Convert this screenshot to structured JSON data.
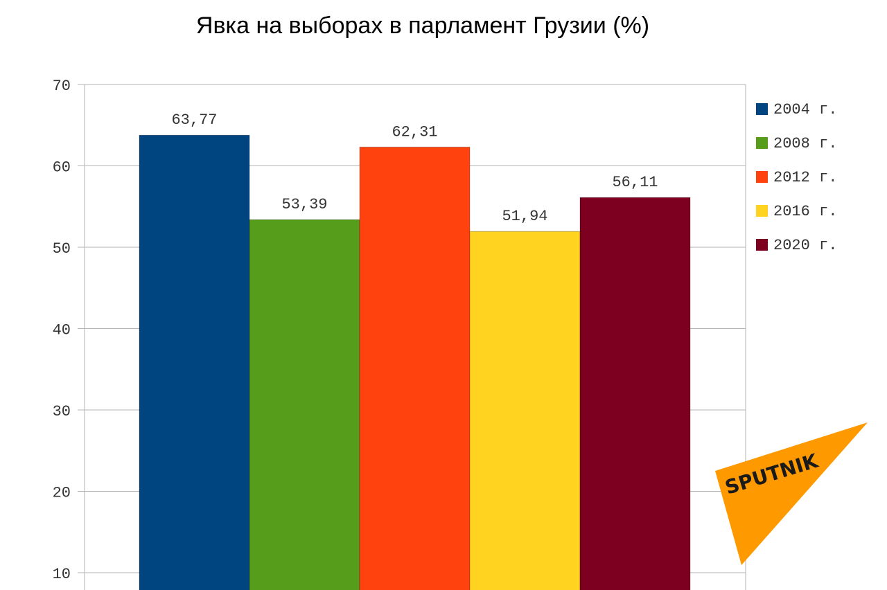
{
  "chart_data": {
    "type": "bar",
    "title": "Явка на выборах в парламент Грузии (%)",
    "xlabel": "",
    "ylabel": "",
    "ylim": [
      0,
      70
    ],
    "yticks": [
      "10",
      "20",
      "30",
      "40",
      "50",
      "60",
      "70"
    ],
    "grid": true,
    "legend_position": "right",
    "series": [
      {
        "name": "2004 г.",
        "value": 63.77,
        "label": "63,77",
        "color": "#00457f"
      },
      {
        "name": "2008 г.",
        "value": 53.39,
        "label": "53,39",
        "color": "#579d1c"
      },
      {
        "name": "2012 г.",
        "value": 62.31,
        "label": "62,31",
        "color": "#ff420e"
      },
      {
        "name": "2016 г.",
        "value": 51.94,
        "label": "51,94",
        "color": "#ffd320"
      },
      {
        "name": "2020 г.",
        "value": 56.11,
        "label": "56,11",
        "color": "#7e0021"
      }
    ]
  },
  "watermark": {
    "text": "SPUTNIK",
    "color": "#ff9900"
  }
}
